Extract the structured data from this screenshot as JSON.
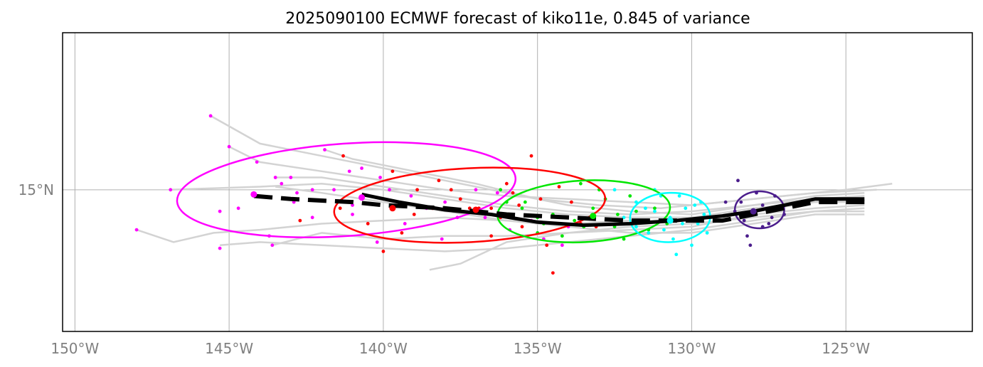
{
  "chart_data": {
    "type": "line",
    "title": "2025090100 ECMWF forecast of kiko11e, 0.845 of variance",
    "xlim": [
      -150.4,
      -120.9
    ],
    "ylim": [
      10.4,
      20.1
    ],
    "grid": true,
    "x_ticks": [
      {
        "value": -150,
        "label": "150°W"
      },
      {
        "value": -145,
        "label": "145°W"
      },
      {
        "value": -140,
        "label": "140°W"
      },
      {
        "value": -135,
        "label": "135°W"
      },
      {
        "value": -130,
        "label": "130°W"
      },
      {
        "value": -125,
        "label": "125°W"
      }
    ],
    "y_ticks": [
      {
        "value": 15,
        "label": "15°N"
      }
    ],
    "mean_track": [
      [
        -124.4,
        14.6
      ],
      [
        -125.0,
        14.6
      ],
      [
        -126.0,
        14.6
      ],
      [
        -127.0,
        14.4
      ],
      [
        -128.0,
        14.2
      ],
      [
        -129.0,
        14.0
      ],
      [
        -130.0,
        14.0
      ],
      [
        -131.0,
        14.0
      ],
      [
        -132.0,
        14.0
      ],
      [
        -133.0,
        14.05
      ],
      [
        -134.0,
        14.1
      ],
      [
        -135.0,
        14.15
      ],
      [
        -136.0,
        14.2
      ],
      [
        -137.0,
        14.3
      ],
      [
        -138.0,
        14.4
      ],
      [
        -139.0,
        14.45
      ],
      [
        -140.0,
        14.5
      ],
      [
        -141.0,
        14.6
      ],
      [
        -142.0,
        14.65
      ],
      [
        -143.0,
        14.7
      ],
      [
        -144.2,
        14.8
      ]
    ],
    "median_track": [
      [
        -124.4,
        14.7
      ],
      [
        -126.0,
        14.7
      ],
      [
        -127.0,
        14.5
      ],
      [
        -128.0,
        14.3
      ],
      [
        -129.0,
        14.15
      ],
      [
        -130.5,
        14.0
      ],
      [
        -132.0,
        13.9
      ],
      [
        -133.5,
        13.85
      ],
      [
        -135.0,
        13.95
      ],
      [
        -136.5,
        14.2
      ],
      [
        -138.0,
        14.35
      ],
      [
        -139.5,
        14.6
      ],
      [
        -140.7,
        14.85
      ]
    ],
    "ellipses": [
      {
        "color": "#ff00ff",
        "cx": -141.2,
        "cy": 15.0,
        "rx": 5.5,
        "ry": 1.5,
        "angle": -4
      },
      {
        "color": "#ff0000",
        "cx": -137.2,
        "cy": 14.5,
        "rx": 4.4,
        "ry": 1.2,
        "angle": -3
      },
      {
        "color": "#00e600",
        "cx": -133.5,
        "cy": 14.3,
        "rx": 2.8,
        "ry": 1.0,
        "angle": -3
      },
      {
        "color": "#00ffff",
        "cx": -130.7,
        "cy": 14.1,
        "rx": 1.3,
        "ry": 0.8,
        "angle": -2
      },
      {
        "color": "#4b1d8c",
        "cx": -127.8,
        "cy": 14.35,
        "rx": 0.8,
        "ry": 0.6,
        "angle": 0
      }
    ],
    "track_centers": [
      {
        "color": "#ff00ff",
        "x": -144.2,
        "y": 14.85
      },
      {
        "color": "#ff00ff",
        "x": -140.7,
        "y": 14.75
      },
      {
        "color": "#ff0000",
        "x": -139.7,
        "y": 14.4
      },
      {
        "color": "#ff0000",
        "x": -137.0,
        "y": 14.35
      },
      {
        "color": "#00e600",
        "x": -133.2,
        "y": 14.15
      },
      {
        "color": "#00ffff",
        "x": -130.7,
        "y": 14.0
      },
      {
        "color": "#4b1d8c",
        "x": -128.0,
        "y": 14.3
      }
    ],
    "points": {
      "magenta": [
        [
          -145.6,
          17.4
        ],
        [
          -145.0,
          16.4
        ],
        [
          -144.1,
          15.9
        ],
        [
          -143.5,
          15.4
        ],
        [
          -143.3,
          15.2
        ],
        [
          -142.9,
          14.6
        ],
        [
          -143.7,
          13.5
        ],
        [
          -143.6,
          13.2
        ],
        [
          -145.3,
          13.1
        ],
        [
          -146.9,
          15.0
        ],
        [
          -148.0,
          13.7
        ],
        [
          -145.3,
          14.3
        ],
        [
          -142.3,
          15.0
        ],
        [
          -141.9,
          16.3
        ],
        [
          -141.6,
          15.0
        ],
        [
          -141.1,
          15.6
        ],
        [
          -140.7,
          15.7
        ],
        [
          -140.1,
          15.4
        ],
        [
          -139.8,
          15.0
        ],
        [
          -139.1,
          14.8
        ],
        [
          -138.6,
          14.4
        ],
        [
          -138.0,
          14.6
        ],
        [
          -137.0,
          15.0
        ],
        [
          -136.7,
          14.1
        ],
        [
          -135.9,
          13.7
        ],
        [
          -135.2,
          14.0
        ],
        [
          -134.8,
          13.4
        ],
        [
          -134.2,
          13.2
        ],
        [
          -134.0,
          13.8
        ],
        [
          -138.1,
          13.4
        ],
        [
          -140.2,
          13.3
        ],
        [
          -142.3,
          14.1
        ],
        [
          -141.0,
          14.2
        ],
        [
          -142.8,
          14.9
        ],
        [
          -143.0,
          15.4
        ],
        [
          -144.7,
          14.4
        ],
        [
          -136.3,
          14.9
        ],
        [
          -137.6,
          14.1
        ],
        [
          -139.3,
          13.9
        ],
        [
          -141.0,
          14.5
        ]
      ],
      "red": [
        [
          -141.3,
          16.1
        ],
        [
          -139.7,
          15.6
        ],
        [
          -138.2,
          15.3
        ],
        [
          -137.5,
          14.7
        ],
        [
          -136.9,
          14.4
        ],
        [
          -136.2,
          14.1
        ],
        [
          -135.6,
          14.5
        ],
        [
          -134.9,
          14.7
        ],
        [
          -134.3,
          15.1
        ],
        [
          -133.9,
          14.6
        ],
        [
          -133.6,
          13.9
        ],
        [
          -133.1,
          13.8
        ],
        [
          -134.7,
          13.2
        ],
        [
          -135.2,
          16.1
        ],
        [
          -135.8,
          14.9
        ],
        [
          -136.5,
          14.4
        ],
        [
          -137.2,
          14.4
        ],
        [
          -138.4,
          14.4
        ],
        [
          -139.0,
          14.2
        ],
        [
          -140.0,
          13.0
        ],
        [
          -140.5,
          13.9
        ],
        [
          -139.4,
          13.6
        ],
        [
          -141.4,
          14.4
        ],
        [
          -142.7,
          14.0
        ],
        [
          -136.0,
          15.2
        ],
        [
          -134.5,
          12.3
        ],
        [
          -137.8,
          15.0
        ],
        [
          -138.9,
          15.0
        ],
        [
          -136.5,
          13.5
        ],
        [
          -135.5,
          13.8
        ]
      ],
      "green": [
        [
          -136.2,
          15.0
        ],
        [
          -135.5,
          14.4
        ],
        [
          -135.0,
          14.1
        ],
        [
          -134.5,
          14.2
        ],
        [
          -133.8,
          14.0
        ],
        [
          -133.2,
          14.4
        ],
        [
          -132.8,
          14.7
        ],
        [
          -132.4,
          14.2
        ],
        [
          -131.8,
          14.3
        ],
        [
          -131.4,
          13.7
        ],
        [
          -132.2,
          13.4
        ],
        [
          -133.5,
          13.8
        ],
        [
          -134.2,
          13.5
        ],
        [
          -135.0,
          13.6
        ],
        [
          -135.4,
          14.6
        ],
        [
          -133.0,
          15.0
        ],
        [
          -132.0,
          14.8
        ],
        [
          -131.2,
          14.4
        ],
        [
          -130.8,
          13.9
        ],
        [
          -133.6,
          15.2
        ],
        [
          -134.8,
          13.9
        ],
        [
          -135.8,
          14.2
        ],
        [
          -136.0,
          14.6
        ],
        [
          -132.5,
          13.8
        ]
      ],
      "cyan": [
        [
          -132.5,
          15.0
        ],
        [
          -131.8,
          14.6
        ],
        [
          -131.2,
          14.3
        ],
        [
          -130.7,
          14.1
        ],
        [
          -130.3,
          13.9
        ],
        [
          -129.8,
          13.9
        ],
        [
          -129.6,
          14.2
        ],
        [
          -129.9,
          14.5
        ],
        [
          -130.4,
          14.8
        ],
        [
          -131.0,
          14.8
        ],
        [
          -131.4,
          13.6
        ],
        [
          -130.6,
          13.4
        ],
        [
          -130.0,
          13.2
        ],
        [
          -131.8,
          13.8
        ],
        [
          -132.2,
          14.1
        ],
        [
          -129.5,
          13.6
        ],
        [
          -130.2,
          14.4
        ],
        [
          -131.5,
          14.4
        ],
        [
          -130.9,
          13.7
        ],
        [
          -130.5,
          12.9
        ],
        [
          -131.2,
          15.0
        ],
        [
          -129.7,
          14.6
        ]
      ],
      "purple": [
        [
          -128.9,
          14.6
        ],
        [
          -128.6,
          14.3
        ],
        [
          -128.3,
          14.0
        ],
        [
          -128.0,
          14.2
        ],
        [
          -127.7,
          14.5
        ],
        [
          -127.4,
          14.1
        ],
        [
          -127.2,
          14.4
        ],
        [
          -127.7,
          13.8
        ],
        [
          -128.2,
          13.5
        ],
        [
          -128.5,
          15.3
        ],
        [
          -127.9,
          14.9
        ],
        [
          -128.4,
          14.6
        ],
        [
          -127.3,
          14.8
        ],
        [
          -127.0,
          14.2
        ],
        [
          -128.1,
          13.2
        ],
        [
          -127.5,
          13.9
        ]
      ]
    },
    "point_colors": {
      "magenta": "#ff00ff",
      "red": "#ff0000",
      "green": "#00e600",
      "cyan": "#00ffff",
      "purple": "#4b1d8c"
    },
    "member_tracks": [
      [
        [
          -124.4,
          14.6
        ],
        [
          -126.0,
          14.6
        ],
        [
          -128.0,
          14.3
        ],
        [
          -130.0,
          14.0
        ],
        [
          -132.0,
          14.0
        ],
        [
          -134.0,
          13.9
        ],
        [
          -136.0,
          14.0
        ],
        [
          -138.0,
          14.3
        ],
        [
          -140.0,
          14.6
        ],
        [
          -142.0,
          14.9
        ],
        [
          -143.5,
          15.1
        ]
      ],
      [
        [
          -124.4,
          14.9
        ],
        [
          -126.0,
          14.8
        ],
        [
          -128.0,
          14.5
        ],
        [
          -130.0,
          14.2
        ],
        [
          -132.0,
          14.3
        ],
        [
          -134.0,
          14.5
        ],
        [
          -136.0,
          14.9
        ],
        [
          -138.0,
          15.3
        ],
        [
          -140.0,
          15.7
        ],
        [
          -142.0,
          16.1
        ],
        [
          -144.0,
          16.5
        ],
        [
          -145.6,
          17.4
        ]
      ],
      [
        [
          -124.4,
          14.4
        ],
        [
          -126.0,
          14.3
        ],
        [
          -128.0,
          14.0
        ],
        [
          -130.0,
          13.7
        ],
        [
          -132.0,
          13.5
        ],
        [
          -134.0,
          13.3
        ],
        [
          -136.0,
          13.1
        ],
        [
          -138.0,
          13.0
        ],
        [
          -140.0,
          13.1
        ],
        [
          -142.0,
          13.2
        ],
        [
          -144.0,
          13.3
        ],
        [
          -145.3,
          13.2
        ]
      ],
      [
        [
          -124.0,
          15.0
        ],
        [
          -126.0,
          14.9
        ],
        [
          -128.0,
          14.7
        ],
        [
          -130.0,
          14.5
        ],
        [
          -132.0,
          14.6
        ],
        [
          -134.0,
          14.7
        ],
        [
          -136.0,
          14.8
        ],
        [
          -138.0,
          15.0
        ],
        [
          -140.0,
          15.3
        ],
        [
          -142.0,
          15.6
        ],
        [
          -144.0,
          15.9
        ],
        [
          -145.0,
          16.4
        ]
      ],
      [
        [
          -124.4,
          14.2
        ],
        [
          -126.0,
          14.2
        ],
        [
          -128.0,
          13.9
        ],
        [
          -130.0,
          13.6
        ],
        [
          -132.0,
          13.6
        ],
        [
          -134.0,
          13.8
        ],
        [
          -136.0,
          14.0
        ],
        [
          -138.0,
          14.1
        ],
        [
          -140.0,
          14.0
        ],
        [
          -142.0,
          13.9
        ],
        [
          -144.0,
          13.7
        ],
        [
          -145.5,
          13.6
        ],
        [
          -146.8,
          13.3
        ],
        [
          -148.0,
          13.7
        ]
      ],
      [
        [
          -124.4,
          14.7
        ],
        [
          -126.0,
          14.6
        ],
        [
          -128.0,
          14.4
        ],
        [
          -130.0,
          14.1
        ],
        [
          -132.0,
          14.1
        ],
        [
          -134.0,
          14.2
        ],
        [
          -136.0,
          14.4
        ],
        [
          -138.0,
          14.7
        ],
        [
          -140.0,
          15.0
        ],
        [
          -142.0,
          15.2
        ],
        [
          -144.0,
          15.1
        ],
        [
          -146.9,
          15.0
        ]
      ],
      [
        [
          -123.5,
          15.2
        ],
        [
          -125.0,
          15.0
        ],
        [
          -127.0,
          14.8
        ],
        [
          -129.0,
          14.6
        ],
        [
          -131.0,
          14.4
        ],
        [
          -133.0,
          14.5
        ],
        [
          -135.0,
          14.7
        ],
        [
          -137.0,
          15.2
        ],
        [
          -139.0,
          15.6
        ],
        [
          -141.0,
          16.0
        ],
        [
          -141.9,
          16.3
        ]
      ],
      [
        [
          -124.4,
          14.5
        ],
        [
          -126.0,
          14.4
        ],
        [
          -128.0,
          14.2
        ],
        [
          -130.0,
          13.8
        ],
        [
          -132.0,
          13.7
        ],
        [
          -134.0,
          13.6
        ],
        [
          -136.0,
          13.5
        ],
        [
          -138.0,
          13.5
        ],
        [
          -140.0,
          13.4
        ],
        [
          -142.0,
          13.6
        ],
        [
          -143.6,
          13.2
        ]
      ],
      [
        [
          -124.4,
          14.8
        ],
        [
          -126.0,
          14.7
        ],
        [
          -128.0,
          14.5
        ],
        [
          -130.0,
          14.3
        ],
        [
          -132.0,
          14.2
        ],
        [
          -134.0,
          14.3
        ],
        [
          -136.0,
          14.5
        ],
        [
          -138.0,
          14.8
        ],
        [
          -140.0,
          15.1
        ],
        [
          -142.0,
          15.4
        ],
        [
          -143.5,
          15.4
        ]
      ],
      [
        [
          -124.4,
          14.3
        ],
        [
          -126.0,
          14.3
        ],
        [
          -128.0,
          14.1
        ],
        [
          -130.0,
          13.9
        ],
        [
          -132.0,
          13.8
        ],
        [
          -134.0,
          13.6
        ],
        [
          -136.0,
          13.3
        ],
        [
          -137.5,
          12.6
        ],
        [
          -138.5,
          12.4
        ]
      ]
    ]
  }
}
